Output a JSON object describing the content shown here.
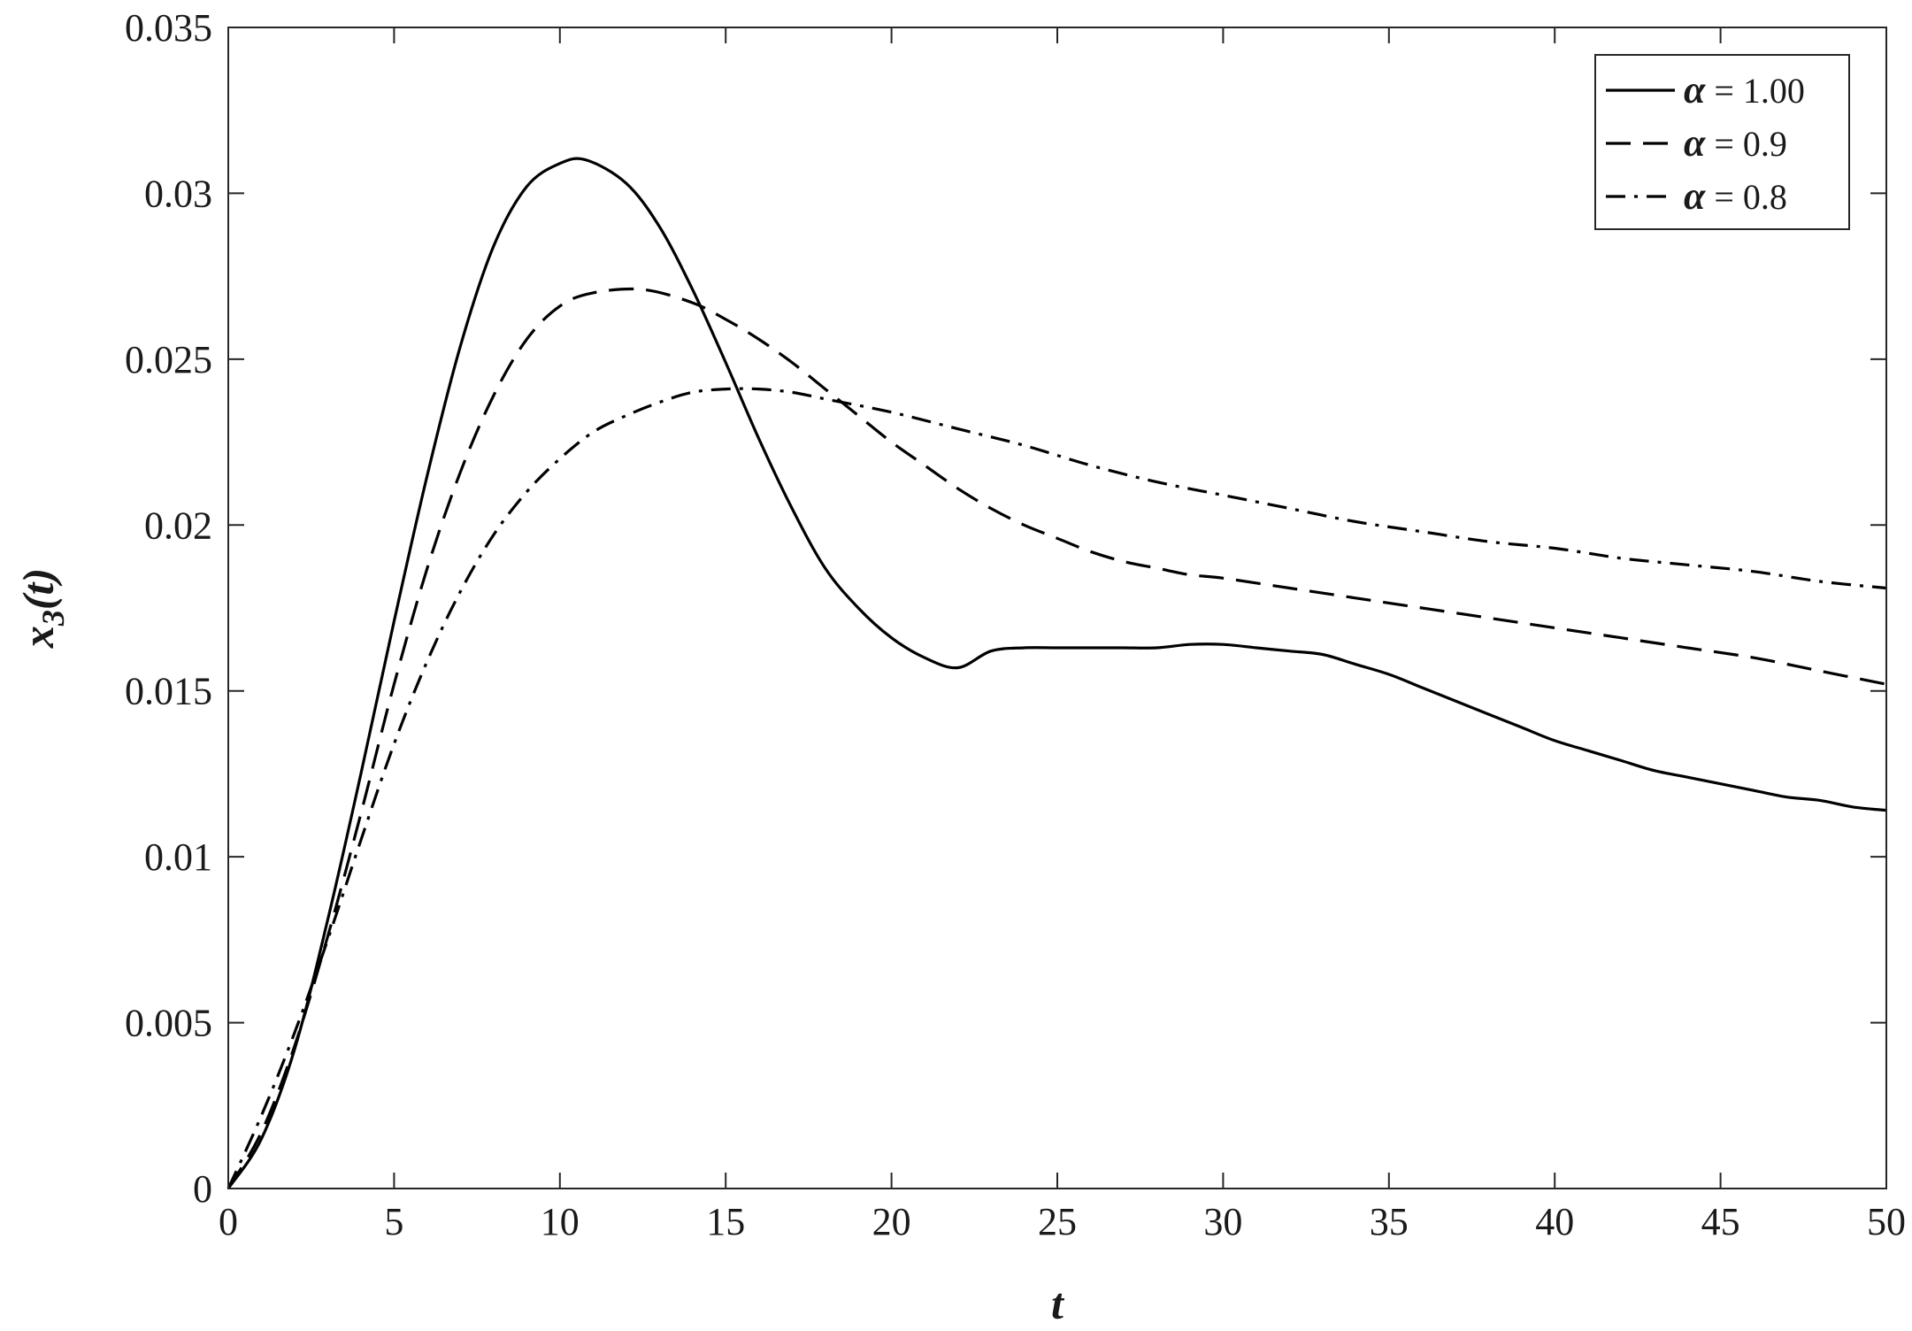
{
  "chart_data": {
    "type": "line",
    "xlabel": "t",
    "ylabel": {
      "base": "x",
      "subscript": "3",
      "suffix": "(t)"
    },
    "xlim": [
      0,
      50
    ],
    "ylim": [
      0,
      0.035
    ],
    "x_ticks": [
      0,
      5,
      10,
      15,
      20,
      25,
      30,
      35,
      40,
      45,
      50
    ],
    "x_tick_labels": [
      "0",
      "5",
      "10",
      "15",
      "20",
      "25",
      "30",
      "35",
      "40",
      "45",
      "50"
    ],
    "y_ticks": [
      0,
      0.005,
      0.01,
      0.015,
      0.02,
      0.025,
      0.03,
      0.035
    ],
    "y_tick_labels": [
      "0",
      "0.005",
      "0.01",
      "0.015",
      "0.02",
      "0.025",
      "0.03",
      "0.035"
    ],
    "grid": false,
    "legend_position": "top-right",
    "color": "#000000",
    "series": [
      {
        "name": "α = 1.00",
        "legend_symbol": "α",
        "legend_value": "= 1.00",
        "style": "solid",
        "x": [
          0,
          1,
          2,
          3,
          4,
          5,
          6,
          7,
          8,
          9,
          10,
          10.8,
          12,
          13,
          14,
          15,
          16,
          17,
          18,
          19,
          20,
          21,
          22,
          23,
          24,
          25,
          26,
          27,
          28,
          29,
          30,
          31,
          32,
          33,
          34,
          35,
          36,
          37,
          38,
          39,
          40,
          41,
          42,
          43,
          44,
          45,
          46,
          47,
          48,
          49,
          50
        ],
        "y": [
          0,
          0.0015,
          0.0042,
          0.0081,
          0.0125,
          0.0171,
          0.0215,
          0.0254,
          0.0284,
          0.0302,
          0.0309,
          0.031,
          0.0303,
          0.029,
          0.0271,
          0.0249,
          0.0226,
          0.0205,
          0.0187,
          0.0175,
          0.0166,
          0.016,
          0.0157,
          0.0162,
          0.0163,
          0.0163,
          0.0163,
          0.0163,
          0.0163,
          0.0164,
          0.0164,
          0.0163,
          0.0162,
          0.0161,
          0.0158,
          0.0155,
          0.0151,
          0.0147,
          0.0143,
          0.0139,
          0.0135,
          0.0132,
          0.0129,
          0.0126,
          0.0124,
          0.0122,
          0.012,
          0.0118,
          0.0117,
          0.0115,
          0.0114
        ]
      },
      {
        "name": "α = 0.9",
        "legend_symbol": "α",
        "legend_value": "= 0.9",
        "style": "dashed",
        "x": [
          0,
          1,
          2,
          3,
          4,
          5,
          6,
          7,
          8,
          9,
          10,
          11,
          12.5,
          14,
          15,
          16,
          17,
          18,
          19,
          20,
          21,
          22,
          23,
          24,
          25,
          26,
          27,
          28,
          29,
          30,
          32,
          34,
          36,
          38,
          40,
          42,
          44,
          46,
          48,
          50
        ],
        "y": [
          0,
          0.0017,
          0.0043,
          0.0076,
          0.0113,
          0.0152,
          0.0187,
          0.0216,
          0.0239,
          0.0256,
          0.0266,
          0.027,
          0.0271,
          0.0267,
          0.0262,
          0.0256,
          0.0249,
          0.0241,
          0.0233,
          0.0225,
          0.0218,
          0.0211,
          0.0205,
          0.02,
          0.0196,
          0.0192,
          0.0189,
          0.0187,
          0.0185,
          0.0184,
          0.0181,
          0.0178,
          0.0175,
          0.0172,
          0.0169,
          0.0166,
          0.0163,
          0.016,
          0.0156,
          0.0152
        ]
      },
      {
        "name": "α = 0.8",
        "legend_symbol": "α",
        "legend_value": "= 0.8",
        "style": "dashdot",
        "x": [
          0,
          1,
          2,
          3,
          4,
          5,
          6,
          7,
          8,
          9,
          10,
          11,
          12,
          13,
          14,
          15,
          16,
          17,
          18,
          20,
          22,
          24,
          26,
          28,
          30,
          32,
          34,
          36,
          38,
          40,
          42,
          44,
          46,
          48,
          50
        ],
        "y": [
          0,
          0.0022,
          0.0047,
          0.0075,
          0.0105,
          0.0134,
          0.0159,
          0.018,
          0.0197,
          0.021,
          0.022,
          0.0228,
          0.0233,
          0.0237,
          0.024,
          0.0241,
          0.0241,
          0.024,
          0.0238,
          0.0234,
          0.0229,
          0.0224,
          0.0218,
          0.0213,
          0.0209,
          0.0205,
          0.0201,
          0.0198,
          0.0195,
          0.0193,
          0.019,
          0.0188,
          0.0186,
          0.0183,
          0.0181
        ]
      }
    ]
  }
}
